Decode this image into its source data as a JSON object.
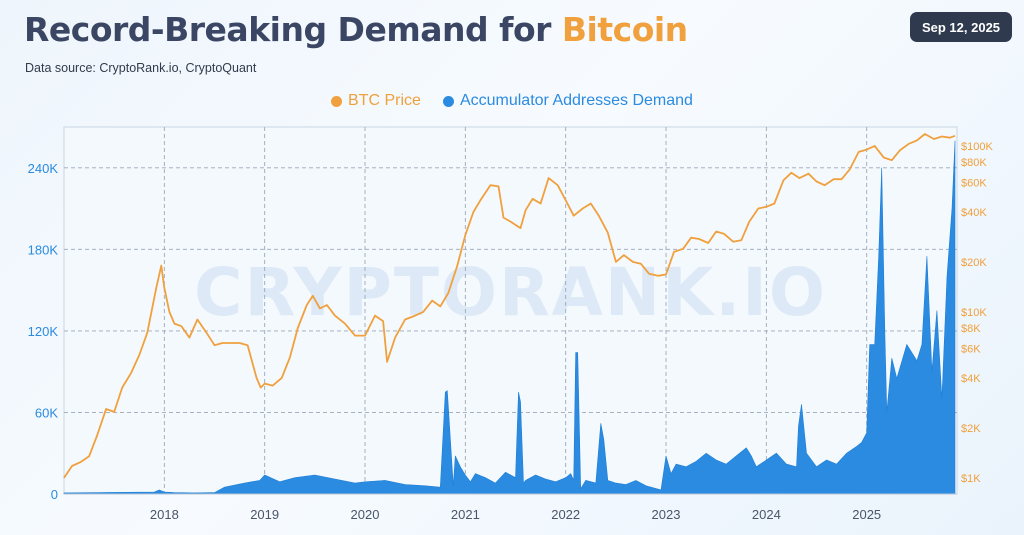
{
  "header": {
    "title_main": "Record-Breaking Demand for ",
    "title_highlight": "Bitcoin",
    "subtitle": "Data source: CryptoRank.io, CryptoQuant",
    "date_badge": "Sep 12, 2025"
  },
  "watermark": "CRYPTORANK.IO",
  "colors": {
    "btc": "#f0a03c",
    "demand": "#2b8be0",
    "title": "#3a4663",
    "axis_left": "#2b8be0",
    "axis_right": "#f0a03c"
  },
  "chart_data": {
    "type": "line+area",
    "title": "Record-Breaking Demand for Bitcoin",
    "legend_position": "top-center",
    "grid": true,
    "x_range": [
      2017.0,
      2025.9
    ],
    "x_ticks": [
      "2018",
      "2019",
      "2020",
      "2021",
      "2022",
      "2023",
      "2024",
      "2025"
    ],
    "left_axis": {
      "ticks": [
        "0",
        "60K",
        "120K",
        "180K",
        "240K"
      ],
      "tick_values": [
        0,
        60000,
        120000,
        180000,
        240000
      ],
      "range": [
        0,
        270000
      ]
    },
    "right_axis": {
      "scale": "log",
      "ticks": [
        "$1K",
        "$2K",
        "$4K",
        "$6K",
        "$8K",
        "$10K",
        "$20K",
        "$40K",
        "$60K",
        "$80K",
        "$100K"
      ],
      "tick_values": [
        1000,
        2000,
        4000,
        6000,
        8000,
        10000,
        20000,
        40000,
        60000,
        80000,
        100000
      ],
      "range": [
        800,
        130000
      ]
    },
    "series": [
      {
        "name": "BTC Price",
        "type": "line",
        "axis": "right",
        "x": [
          2017.0,
          2017.08,
          2017.17,
          2017.25,
          2017.33,
          2017.42,
          2017.5,
          2017.58,
          2017.67,
          2017.75,
          2017.83,
          2017.92,
          2017.97,
          2018.0,
          2018.05,
          2018.1,
          2018.17,
          2018.25,
          2018.33,
          2018.42,
          2018.5,
          2018.58,
          2018.67,
          2018.75,
          2018.83,
          2018.92,
          2018.96,
          2019.0,
          2019.08,
          2019.17,
          2019.25,
          2019.33,
          2019.42,
          2019.48,
          2019.55,
          2019.62,
          2019.7,
          2019.8,
          2019.9,
          2020.0,
          2020.1,
          2020.18,
          2020.22,
          2020.3,
          2020.4,
          2020.5,
          2020.58,
          2020.67,
          2020.75,
          2020.83,
          2020.92,
          2021.0,
          2021.08,
          2021.15,
          2021.25,
          2021.33,
          2021.38,
          2021.45,
          2021.55,
          2021.6,
          2021.67,
          2021.75,
          2021.83,
          2021.92,
          2022.0,
          2022.08,
          2022.17,
          2022.25,
          2022.33,
          2022.42,
          2022.5,
          2022.58,
          2022.67,
          2022.75,
          2022.83,
          2022.92,
          2023.0,
          2023.08,
          2023.17,
          2023.25,
          2023.33,
          2023.42,
          2023.5,
          2023.58,
          2023.67,
          2023.75,
          2023.83,
          2023.92,
          2024.0,
          2024.08,
          2024.17,
          2024.25,
          2024.33,
          2024.42,
          2024.5,
          2024.58,
          2024.67,
          2024.75,
          2024.83,
          2024.92,
          2025.0,
          2025.08,
          2025.17,
          2025.25,
          2025.33,
          2025.42,
          2025.5,
          2025.58,
          2025.67,
          2025.75,
          2025.83,
          2025.88
        ],
        "values": [
          1000,
          1180,
          1250,
          1350,
          1800,
          2600,
          2500,
          3500,
          4300,
          5500,
          7500,
          14000,
          19000,
          14000,
          10000,
          8500,
          8200,
          7000,
          9000,
          7500,
          6300,
          6500,
          6500,
          6500,
          6300,
          4000,
          3500,
          3700,
          3600,
          4000,
          5300,
          8000,
          11000,
          12500,
          10500,
          11000,
          9500,
          8500,
          7200,
          7200,
          9500,
          8800,
          5000,
          7000,
          9000,
          9500,
          10000,
          11700,
          10800,
          13000,
          19000,
          29000,
          40000,
          47000,
          58000,
          57000,
          37000,
          35000,
          32000,
          41000,
          48000,
          45000,
          64000,
          58000,
          47000,
          38000,
          42000,
          45000,
          38000,
          30000,
          20000,
          22000,
          20000,
          19500,
          17000,
          16500,
          16800,
          23000,
          24000,
          28000,
          27500,
          26000,
          30500,
          29500,
          26500,
          27000,
          35000,
          42000,
          43000,
          45000,
          62000,
          69000,
          64000,
          68000,
          61000,
          58000,
          63000,
          63000,
          72000,
          92000,
          95000,
          100000,
          85000,
          82000,
          94000,
          103000,
          108000,
          118000,
          110000,
          114000,
          112000,
          115000
        ]
      },
      {
        "name": "Accumulator Addresses Demand",
        "type": "area",
        "axis": "left",
        "x": [
          2017.0,
          2017.5,
          2017.9,
          2017.95,
          2018.0,
          2018.1,
          2018.3,
          2018.5,
          2018.6,
          2018.8,
          2018.95,
          2019.0,
          2019.15,
          2019.3,
          2019.5,
          2019.7,
          2019.9,
          2020.0,
          2020.2,
          2020.4,
          2020.6,
          2020.75,
          2020.8,
          2020.82,
          2020.88,
          2020.9,
          2020.95,
          2021.0,
          2021.05,
          2021.1,
          2021.2,
          2021.3,
          2021.4,
          2021.5,
          2021.53,
          2021.55,
          2021.58,
          2021.6,
          2021.7,
          2021.8,
          2021.9,
          2022.0,
          2022.05,
          2022.08,
          2022.1,
          2022.12,
          2022.15,
          2022.2,
          2022.3,
          2022.35,
          2022.38,
          2022.42,
          2022.5,
          2022.6,
          2022.7,
          2022.8,
          2022.9,
          2022.95,
          2023.0,
          2023.05,
          2023.1,
          2023.2,
          2023.3,
          2023.4,
          2023.5,
          2023.6,
          2023.7,
          2023.8,
          2023.85,
          2023.9,
          2024.0,
          2024.1,
          2024.2,
          2024.3,
          2024.32,
          2024.35,
          2024.4,
          2024.5,
          2024.6,
          2024.7,
          2024.8,
          2024.9,
          2024.95,
          2025.0,
          2025.03,
          2025.08,
          2025.12,
          2025.15,
          2025.18,
          2025.2,
          2025.25,
          2025.3,
          2025.4,
          2025.5,
          2025.55,
          2025.6,
          2025.65,
          2025.7,
          2025.75,
          2025.8,
          2025.85,
          2025.88
        ],
        "values": [
          800,
          1200,
          1500,
          3000,
          1500,
          1000,
          800,
          1000,
          5000,
          8000,
          10000,
          14000,
          9000,
          12000,
          14000,
          11000,
          8000,
          9000,
          10000,
          7000,
          6000,
          5000,
          75000,
          76000,
          6000,
          28000,
          20000,
          14000,
          9000,
          15000,
          12000,
          8000,
          16000,
          12000,
          75000,
          68000,
          8000,
          10000,
          14000,
          11000,
          9000,
          12000,
          15000,
          10000,
          104000,
          104000,
          4000,
          10000,
          8000,
          52000,
          40000,
          10000,
          8000,
          7000,
          10000,
          6000,
          4000,
          3000,
          28000,
          15000,
          22000,
          20000,
          24000,
          30000,
          25000,
          22000,
          28000,
          34000,
          28000,
          20000,
          25000,
          30000,
          22000,
          20000,
          50000,
          66000,
          30000,
          20000,
          25000,
          22000,
          30000,
          35000,
          38000,
          45000,
          110000,
          110000,
          175000,
          240000,
          120000,
          60000,
          100000,
          85000,
          110000,
          98000,
          110000,
          175000,
          90000,
          135000,
          70000,
          160000,
          210000,
          260000
        ]
      }
    ]
  }
}
